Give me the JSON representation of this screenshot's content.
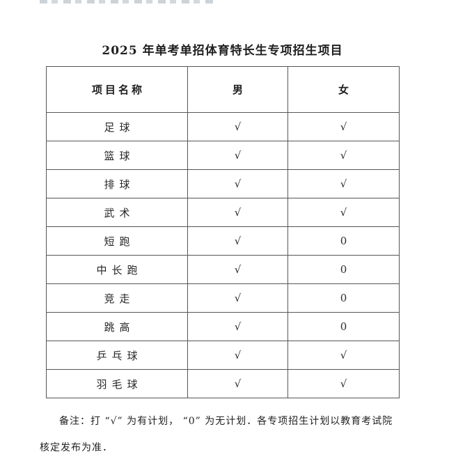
{
  "document": {
    "title": "2025 年单考单招体育特长生专项招生项目"
  },
  "table": {
    "headers": {
      "name": "项目名称",
      "male": "男",
      "female": "女"
    },
    "rows": [
      {
        "name": "足球",
        "male": "√",
        "female": "√"
      },
      {
        "name": "篮球",
        "male": "√",
        "female": "√"
      },
      {
        "name": "排球",
        "male": "√",
        "female": "√"
      },
      {
        "name": "武术",
        "male": "√",
        "female": "√"
      },
      {
        "name": "短跑",
        "male": "√",
        "female": "0"
      },
      {
        "name": "中长跑",
        "male": "√",
        "female": "0"
      },
      {
        "name": "竞走",
        "male": "√",
        "female": "0"
      },
      {
        "name": "跳高",
        "male": "√",
        "female": "0"
      },
      {
        "name": "乒乓球",
        "male": "√",
        "female": "√"
      },
      {
        "name": "羽毛球",
        "male": "√",
        "female": "√"
      }
    ]
  },
  "note": {
    "line1": "备注：打 “√” 为有计划， “0” 为无计划．各专项招生计划以教育考试院",
    "line2": "核定发布为准．"
  }
}
